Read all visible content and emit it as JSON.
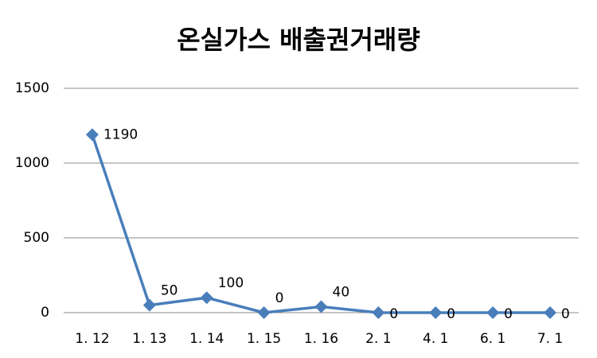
{
  "chart_data": {
    "type": "line",
    "title": "온실가스 배출권거래량",
    "categories": [
      "1. 12",
      "1. 13",
      "1. 14",
      "1. 15",
      "1. 16",
      "2. 1",
      "4. 1",
      "6. 1",
      "7. 1"
    ],
    "values": [
      1190,
      50,
      100,
      0,
      40,
      0,
      0,
      0,
      0
    ],
    "color": "#4a7ebb",
    "ylim": [
      0,
      1500
    ],
    "yticks": [
      0,
      500,
      1000,
      1500
    ],
    "grid": true
  }
}
